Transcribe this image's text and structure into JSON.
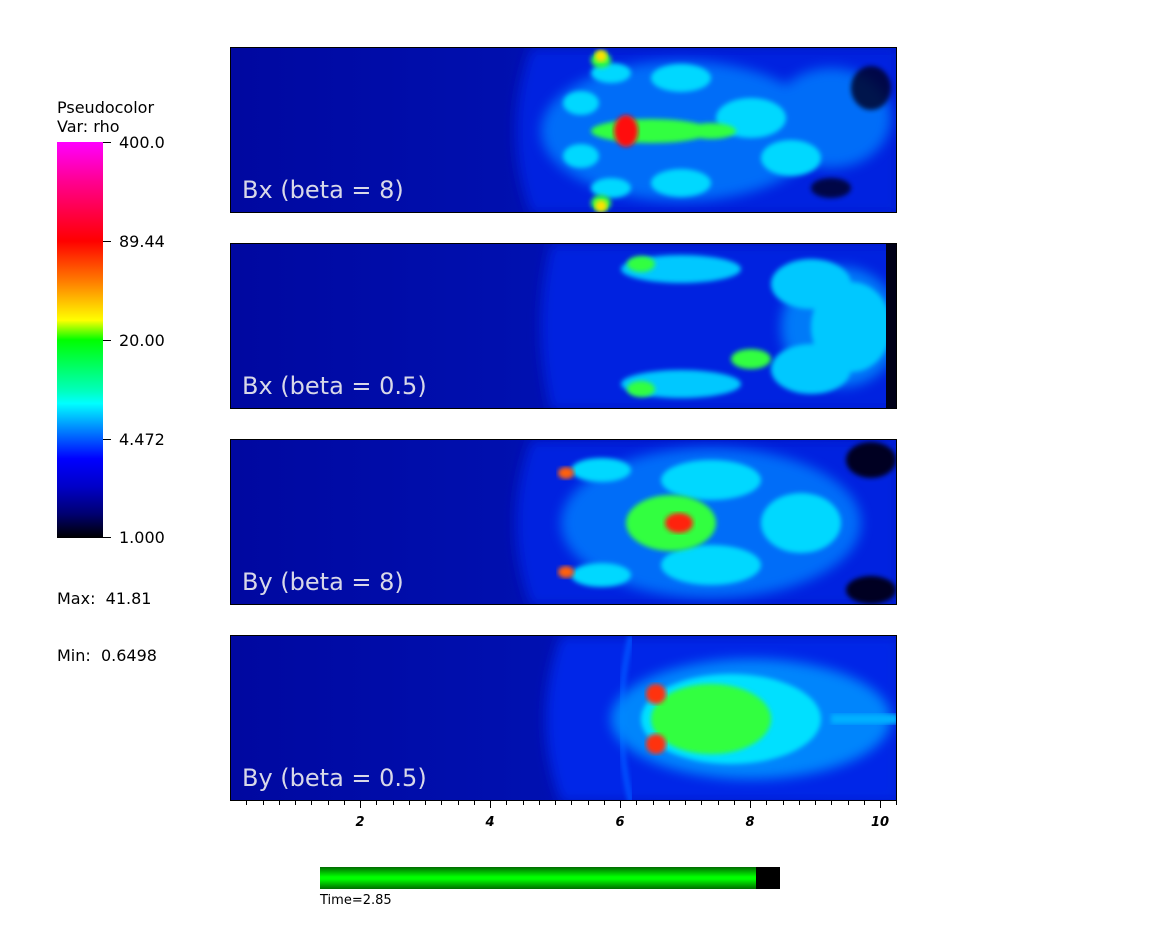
{
  "legend": {
    "title": "Pseudocolor",
    "var_label": "Var: rho",
    "ticks": [
      "400.0",
      "89.44",
      "20.00",
      "4.472",
      "1.000"
    ],
    "max_label": "Max:  41.81",
    "min_label": "Min:  0.6498"
  },
  "panels": [
    {
      "label": "Bx (beta = 8)"
    },
    {
      "label": "Bx (beta = 0.5)"
    },
    {
      "label": "By (beta = 8)"
    },
    {
      "label": "By (beta = 0.5)"
    }
  ],
  "axis": {
    "labels": [
      "2",
      "4",
      "6",
      "8",
      "10"
    ],
    "range": [
      0,
      10.25
    ]
  },
  "time": {
    "label": "Time=2.85",
    "fraction": 0.948
  },
  "colors": {
    "background_blue": "#0010a8",
    "shock_blue": "#0030ff",
    "cyan": "#00e8ff",
    "green": "#20ff40",
    "red": "#ff1010",
    "black": "#000010"
  }
}
